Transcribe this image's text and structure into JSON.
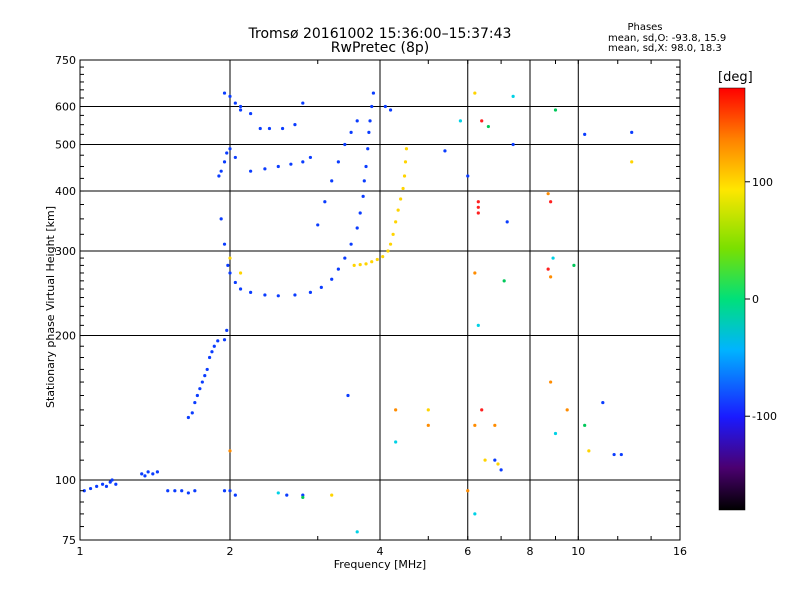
{
  "chart_data": {
    "type": "scatter",
    "title": "Tromsø 20161002 15:36:00–15:37:43",
    "subtitle": "RwPretec (8p)",
    "xlabel": "Frequency [MHz]",
    "ylabel": "Stationary phase Virtual Height [km]",
    "x_scale": "log",
    "y_scale": "log",
    "xlim": [
      1,
      16
    ],
    "ylim": [
      75,
      750
    ],
    "x_ticks": [
      1,
      2,
      4,
      6,
      8,
      10,
      16
    ],
    "y_ticks": [
      75,
      100,
      200,
      300,
      400,
      500,
      600,
      750
    ],
    "grid": true,
    "phases": {
      "title": "Phases",
      "o_label": "mean, sd,O:",
      "o_values": "-93.8, 15.9",
      "x_label": "mean, sd,X:",
      "x_values": "98.0, 18.3"
    },
    "colorbar": {
      "unit": "[deg]",
      "range": [
        -180,
        180
      ],
      "ticks": [
        100,
        0,
        -100
      ],
      "tick_labels": [
        "100",
        "0",
        "-100"
      ]
    },
    "series": [
      {
        "phase_deg": -100,
        "color": "#0a3cff",
        "points": [
          [
            1.02,
            95
          ],
          [
            1.05,
            96
          ],
          [
            1.08,
            97
          ],
          [
            1.11,
            98
          ],
          [
            1.13,
            97
          ],
          [
            1.15,
            99
          ],
          [
            1.16,
            100
          ],
          [
            1.18,
            98
          ],
          [
            1.33,
            103
          ],
          [
            1.35,
            102
          ],
          [
            1.37,
            104
          ],
          [
            1.4,
            103
          ],
          [
            1.43,
            104
          ],
          [
            1.5,
            95
          ],
          [
            1.55,
            95
          ],
          [
            1.6,
            95
          ],
          [
            1.65,
            94
          ],
          [
            1.7,
            95
          ],
          [
            1.65,
            135
          ],
          [
            1.68,
            138
          ],
          [
            1.7,
            145
          ],
          [
            1.72,
            150
          ],
          [
            1.74,
            155
          ],
          [
            1.76,
            160
          ],
          [
            1.78,
            165
          ],
          [
            1.8,
            170
          ],
          [
            1.82,
            180
          ],
          [
            1.84,
            185
          ],
          [
            1.86,
            190
          ],
          [
            1.89,
            195
          ],
          [
            1.95,
            196
          ],
          [
            1.97,
            205
          ],
          [
            1.95,
            95
          ],
          [
            2.0,
            95
          ],
          [
            2.05,
            93
          ],
          [
            1.9,
            430
          ],
          [
            1.92,
            440
          ],
          [
            1.95,
            460
          ],
          [
            1.97,
            480
          ],
          [
            2.0,
            490
          ],
          [
            2.05,
            470
          ],
          [
            1.92,
            350
          ],
          [
            1.95,
            310
          ],
          [
            1.98,
            280
          ],
          [
            2.0,
            270
          ],
          [
            2.05,
            258
          ],
          [
            2.1,
            250
          ],
          [
            2.2,
            246
          ],
          [
            2.35,
            243
          ],
          [
            2.5,
            242
          ],
          [
            2.7,
            243
          ],
          [
            2.9,
            246
          ],
          [
            3.05,
            252
          ],
          [
            3.2,
            262
          ],
          [
            3.3,
            275
          ],
          [
            3.4,
            290
          ],
          [
            3.5,
            310
          ],
          [
            3.6,
            335
          ],
          [
            3.65,
            360
          ],
          [
            3.7,
            390
          ],
          [
            3.72,
            420
          ],
          [
            3.75,
            450
          ],
          [
            3.78,
            490
          ],
          [
            3.8,
            530
          ],
          [
            3.82,
            560
          ],
          [
            3.85,
            600
          ],
          [
            3.88,
            640
          ],
          [
            3.0,
            340
          ],
          [
            3.1,
            380
          ],
          [
            3.2,
            420
          ],
          [
            3.3,
            460
          ],
          [
            3.4,
            500
          ],
          [
            3.5,
            530
          ],
          [
            3.6,
            560
          ],
          [
            2.1,
            590
          ],
          [
            2.2,
            580
          ],
          [
            2.3,
            540
          ],
          [
            2.4,
            540
          ],
          [
            2.55,
            540
          ],
          [
            2.7,
            550
          ],
          [
            2.2,
            440
          ],
          [
            2.35,
            445
          ],
          [
            2.5,
            450
          ],
          [
            2.65,
            455
          ],
          [
            2.8,
            460
          ],
          [
            2.9,
            470
          ],
          [
            1.95,
            640
          ],
          [
            2.0,
            630
          ],
          [
            2.05,
            610
          ],
          [
            2.1,
            600
          ],
          [
            2.8,
            610
          ],
          [
            4.1,
            600
          ],
          [
            4.2,
            590
          ],
          [
            5.4,
            485
          ],
          [
            2.8,
            93
          ],
          [
            2.6,
            93
          ],
          [
            6.0,
            430
          ],
          [
            6.8,
            110
          ],
          [
            7.0,
            105
          ],
          [
            7.4,
            500
          ],
          [
            7.2,
            345
          ],
          [
            10.3,
            525
          ],
          [
            11.2,
            145
          ],
          [
            11.8,
            113
          ],
          [
            12.8,
            530
          ],
          [
            12.2,
            113
          ],
          [
            3.45,
            150
          ]
        ]
      },
      {
        "phase_deg": 100,
        "color": "#ffd400",
        "points": [
          [
            3.55,
            280
          ],
          [
            3.65,
            281
          ],
          [
            3.75,
            282
          ],
          [
            3.85,
            285
          ],
          [
            3.95,
            288
          ],
          [
            4.05,
            292
          ],
          [
            4.15,
            300
          ],
          [
            4.2,
            310
          ],
          [
            4.25,
            325
          ],
          [
            4.3,
            345
          ],
          [
            4.35,
            365
          ],
          [
            4.4,
            385
          ],
          [
            4.45,
            405
          ],
          [
            4.48,
            430
          ],
          [
            4.5,
            460
          ],
          [
            4.52,
            490
          ],
          [
            2.0,
            290
          ],
          [
            2.1,
            270
          ],
          [
            3.2,
            93
          ],
          [
            6.2,
            640
          ],
          [
            6.5,
            110
          ],
          [
            6.9,
            108
          ],
          [
            10.5,
            115
          ],
          [
            12.8,
            460
          ],
          [
            5.0,
            140
          ]
        ]
      },
      {
        "phase_deg": 140,
        "color": "#ff8c00",
        "points": [
          [
            2.0,
            115
          ],
          [
            4.3,
            140
          ],
          [
            6.2,
            130
          ],
          [
            6.8,
            130
          ],
          [
            8.8,
            160
          ],
          [
            8.8,
            265
          ],
          [
            9.5,
            140
          ],
          [
            5.0,
            130
          ],
          [
            6.0,
            95
          ],
          [
            6.2,
            270
          ],
          [
            8.7,
            395
          ]
        ]
      },
      {
        "phase_deg": 170,
        "color": "#ff2020",
        "points": [
          [
            6.3,
            380
          ],
          [
            6.3,
            370
          ],
          [
            6.3,
            360
          ],
          [
            8.8,
            380
          ],
          [
            6.4,
            140
          ],
          [
            6.4,
            560
          ],
          [
            8.7,
            275
          ]
        ]
      },
      {
        "phase_deg": 0,
        "color": "#00c85a",
        "points": [
          [
            6.6,
            545
          ],
          [
            9.0,
            590
          ],
          [
            10.3,
            130
          ],
          [
            7.1,
            260
          ],
          [
            9.8,
            280
          ],
          [
            2.8,
            92
          ]
        ]
      },
      {
        "phase_deg": -40,
        "color": "#00d2e6",
        "points": [
          [
            6.3,
            210
          ],
          [
            6.2,
            85
          ],
          [
            4.3,
            120
          ],
          [
            2.5,
            94
          ],
          [
            7.4,
            630
          ],
          [
            8.9,
            290
          ],
          [
            9.0,
            125
          ],
          [
            5.8,
            560
          ],
          [
            3.6,
            78
          ]
        ]
      }
    ]
  }
}
